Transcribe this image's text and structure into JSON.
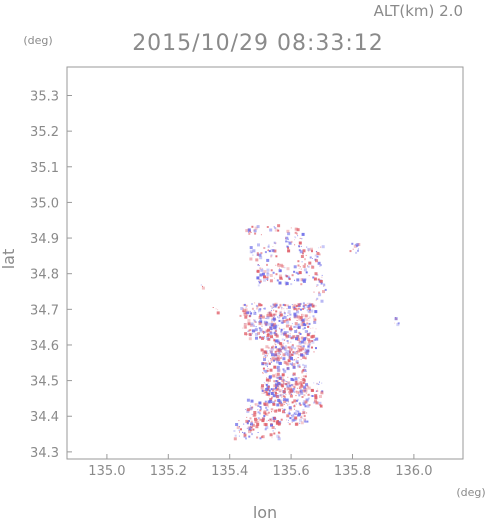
{
  "chart_data": {
    "type": "scatter",
    "title": "2015/10/29 08:33:12",
    "subtitle": "ALT(km) 2.0",
    "xlabel": "lon",
    "ylabel": "lat",
    "x_unit": "(deg)",
    "y_unit": "(deg)",
    "xlim": [
      134.87,
      136.16
    ],
    "ylim": [
      34.28,
      35.38
    ],
    "xticks": [
      "135.0",
      "135.2",
      "135.4",
      "135.6",
      "135.8",
      "136.0"
    ],
    "yticks": [
      "34.3",
      "34.4",
      "34.5",
      "34.6",
      "34.7",
      "34.8",
      "34.9",
      "35.0",
      "35.1",
      "35.2",
      "35.3"
    ],
    "grid": false,
    "colors": {
      "positive": "#e0606a",
      "negative": "#6a6ae8",
      "frame": "#9a9a9a",
      "text": "#8a8a8a"
    },
    "echo_regions": [
      {
        "lon": [
          135.45,
          135.56
        ],
        "lat": [
          34.91,
          34.94
        ],
        "density": 0.35
      },
      {
        "lon": [
          135.58,
          135.64
        ],
        "lat": [
          34.86,
          34.93
        ],
        "density": 0.4
      },
      {
        "lon": [
          135.46,
          135.55
        ],
        "lat": [
          34.84,
          34.89
        ],
        "density": 0.45
      },
      {
        "lon": [
          135.62,
          135.7
        ],
        "lat": [
          34.82,
          34.88
        ],
        "density": 0.45
      },
      {
        "lon": [
          135.48,
          135.7
        ],
        "lat": [
          34.77,
          34.83
        ],
        "density": 0.4
      },
      {
        "lon": [
          135.67,
          135.71
        ],
        "lat": [
          34.72,
          34.79
        ],
        "density": 0.35
      },
      {
        "lon": [
          135.79,
          135.83
        ],
        "lat": [
          34.86,
          34.89
        ],
        "density": 0.5
      },
      {
        "lon": [
          135.44,
          135.55
        ],
        "lat": [
          34.62,
          34.72
        ],
        "density": 0.7
      },
      {
        "lon": [
          135.53,
          135.68
        ],
        "lat": [
          34.58,
          34.72
        ],
        "density": 0.8
      },
      {
        "lon": [
          135.5,
          135.65
        ],
        "lat": [
          34.46,
          34.6
        ],
        "density": 0.75
      },
      {
        "lon": [
          135.52,
          135.7
        ],
        "lat": [
          34.43,
          34.5
        ],
        "density": 0.6
      },
      {
        "lon": [
          135.45,
          135.65
        ],
        "lat": [
          34.38,
          34.45
        ],
        "density": 0.6
      },
      {
        "lon": [
          135.41,
          135.56
        ],
        "lat": [
          34.34,
          34.39
        ],
        "density": 0.5
      },
      {
        "lon": [
          135.43,
          135.46
        ],
        "lat": [
          34.68,
          34.71
        ],
        "density": 0.6
      },
      {
        "lon": [
          135.93,
          135.95
        ],
        "lat": [
          34.66,
          34.68
        ],
        "density": 0.8
      },
      {
        "lon": [
          135.3,
          135.31
        ],
        "lat": [
          34.75,
          34.77
        ],
        "density": 0.6
      },
      {
        "lon": [
          135.34,
          135.36
        ],
        "lat": [
          34.69,
          34.71
        ],
        "density": 0.5
      }
    ]
  }
}
